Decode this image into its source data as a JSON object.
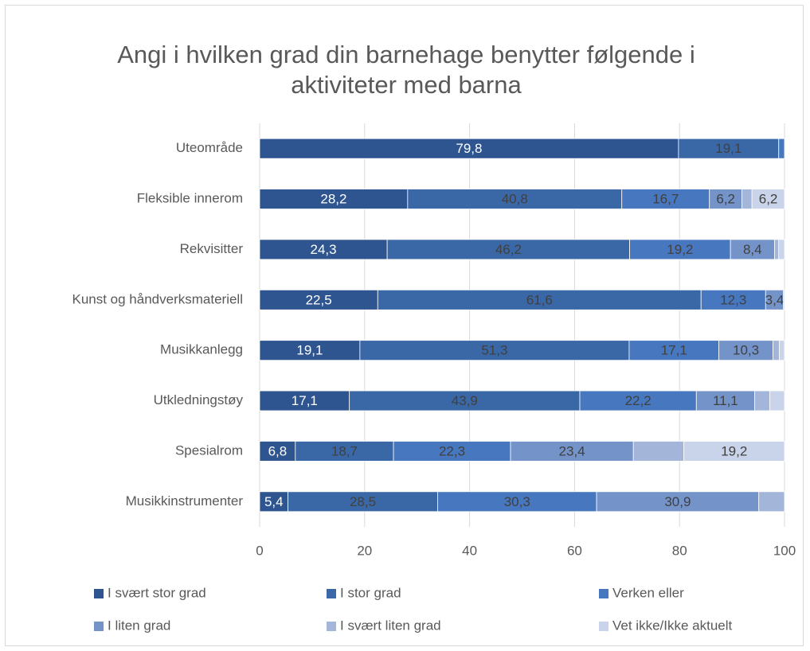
{
  "chart_data": {
    "type": "stacked_barh",
    "title": "Angi i hvilken grad din barnehage benytter følgende i aktiviteter med barna",
    "categories": [
      "Uteområde",
      "Fleksible innerom",
      "Rekvisitter",
      "Kunst og håndverksmateriell",
      "Musikkanlegg",
      "Utkledningstøy",
      "Spesialrom",
      "Musikkinstrumenter"
    ],
    "series": [
      {
        "name": "I svært stor grad",
        "color": "#2e5590",
        "label_color": "#ffffff",
        "values": [
          79.8,
          28.2,
          24.3,
          22.5,
          19.1,
          17.1,
          6.8,
          5.4
        ],
        "value_labels": [
          "79,8",
          "28,2",
          "24,3",
          "22,5",
          "19,1",
          "17,1",
          "6,8",
          "5,4"
        ]
      },
      {
        "name": "I stor grad",
        "color": "#3a67a6",
        "label_color": "#404040",
        "values": [
          19.1,
          40.8,
          46.2,
          61.6,
          51.3,
          43.9,
          18.7,
          28.5
        ],
        "value_labels": [
          "19,1",
          "40,8",
          "46,2",
          "61,6",
          "51,3",
          "43,9",
          "18,7",
          "28,5"
        ]
      },
      {
        "name": "Verken eller",
        "color": "#4677bf",
        "label_color": "#404040",
        "values": [
          1.1,
          16.7,
          19.2,
          12.3,
          17.1,
          22.2,
          22.3,
          30.3
        ],
        "value_labels": [
          null,
          "16,7",
          "19,2",
          "12,3",
          "17,1",
          "22,2",
          "22,3",
          "30,3"
        ]
      },
      {
        "name": "I liten grad",
        "color": "#7393c9",
        "label_color": "#404040",
        "values": [
          0,
          6.2,
          8.4,
          3.4,
          10.3,
          11.1,
          23.4,
          30.9
        ],
        "value_labels": [
          null,
          "6,2",
          "8,4",
          "3,4",
          "10,3",
          "11,1",
          "23,4",
          "30,9"
        ]
      },
      {
        "name": "I svært liten grad",
        "color": "#a3b6da",
        "label_color": "#404040",
        "values": [
          0,
          1.9,
          0.8,
          0,
          1.2,
          2.9,
          9.6,
          4.9
        ],
        "value_labels": [
          null,
          null,
          null,
          null,
          null,
          null,
          null,
          null
        ]
      },
      {
        "name": "Vet ikke/Ikke aktuelt",
        "color": "#c9d3e9",
        "label_color": "#404040",
        "values": [
          0,
          6.2,
          1.1,
          0.2,
          1.0,
          2.8,
          19.2,
          0
        ],
        "value_labels": [
          null,
          "6,2",
          null,
          null,
          null,
          null,
          "19,2",
          null
        ]
      }
    ],
    "xlim": [
      0,
      100
    ],
    "xticks": [
      0,
      20,
      40,
      60,
      80,
      100
    ],
    "grid": true
  }
}
